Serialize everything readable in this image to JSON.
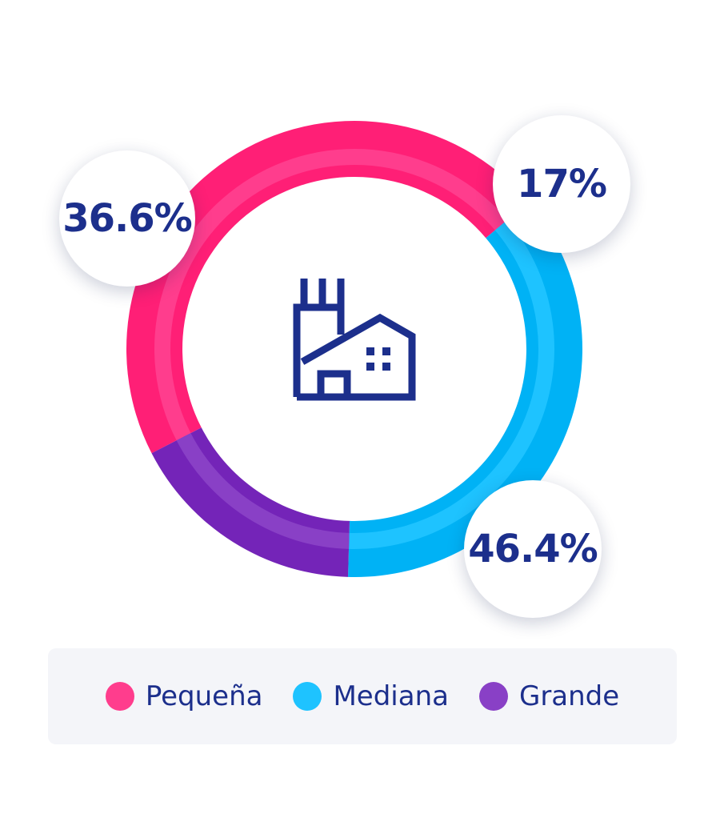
{
  "chart_data": {
    "type": "pie",
    "variant": "donut",
    "slices": [
      {
        "label": "Pequeña",
        "value": 46.4,
        "display": "46.4%",
        "color": "#ff3d8d",
        "edge_color": "#ff1f76"
      },
      {
        "label": "Mediana",
        "value": 36.6,
        "display": "36.6%",
        "color": "#1ec3ff",
        "edge_color": "#00b2f5"
      },
      {
        "label": "Grande",
        "value": 17,
        "display": "17%",
        "color": "#8940c6",
        "edge_color": "#7424b8"
      }
    ],
    "legend_position": "bottom",
    "center_icon": "factory-icon"
  },
  "colors": {
    "text": "#1c2f8c",
    "legend_bg": "#f4f5f9"
  }
}
